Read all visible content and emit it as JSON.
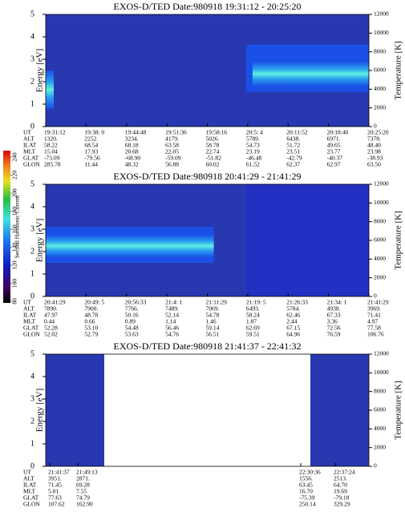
{
  "chart_data": [
    {
      "type": "heatmap",
      "title": "EXOS-D/TED  Date:980918  19:31:12 - 20:25:20",
      "ylabel": "Energy [eV]",
      "y2label": "Temperature [K]",
      "ylim": [
        0,
        5
      ],
      "yticks": [
        0,
        1,
        2,
        3,
        4,
        5
      ],
      "y2lim": [
        0,
        12000
      ],
      "y2ticks": [
        0,
        2000,
        4000,
        6000,
        8000,
        10000,
        12000
      ],
      "ephemeris": {
        "labels": [
          "UT",
          "ALT",
          "ILAT",
          "MLT",
          "GLAT",
          "GLON"
        ],
        "rows": [
          [
            "19:31:12",
            "19:38: 0",
            "19:44:48",
            "19:51:36",
            "19:58:16",
            "20:5: 4",
            "20:11:52",
            "20:18:40",
            "20:25:20"
          ],
          [
            "1320.",
            "2252.",
            "3234.",
            "4179.",
            "5026.",
            "5789.",
            "6438.",
            "6971.",
            "7378."
          ],
          [
            "58.22",
            "68.54",
            "68.18",
            "63.58",
            "58.78",
            "54.73",
            "51.72",
            "49.65",
            "48.40"
          ],
          [
            "15.04",
            "17.93",
            "20.68",
            "22.05",
            "22.74",
            "23.19",
            "23.51",
            "23.77",
            "23.98"
          ],
          [
            "-73.09",
            "-79.56",
            "-68.90",
            "-59.09",
            "-51.82",
            "-46.48",
            "-42.79",
            "-40.37",
            "-38.93"
          ],
          [
            "285.78",
            "11.44",
            "48.32",
            "56.88",
            "60.02",
            "61.52",
            "62.37",
            "62.97",
            "63.50"
          ]
        ]
      }
    },
    {
      "type": "heatmap",
      "title": "EXOS-D/TED  Date:980918  20:41:29 - 21:41:29",
      "ylabel": "Energy [eV]",
      "y2label": "Temperature [K]",
      "ylim": [
        0,
        5
      ],
      "yticks": [
        0,
        1,
        2,
        3,
        4,
        5
      ],
      "y2lim": [
        0,
        12000
      ],
      "y2ticks": [
        0,
        2000,
        4000,
        6000,
        8000,
        10000,
        12000
      ],
      "ephemeris": {
        "labels": [
          "UT",
          "ALT",
          "ILAT",
          "MLT",
          "GLAT",
          "GLON"
        ],
        "rows": [
          [
            "20:41:29",
            "20:49: 5",
            "20:56:33",
            "21:4: 1",
            "21:11:29",
            "21:19: 5",
            "21:26:33",
            "21:34: 1",
            "21:41:29"
          ],
          [
            "7890.",
            "7900.",
            "7766.",
            "7489.",
            "7069.",
            "6493.",
            "5784.",
            "4938.",
            "3969."
          ],
          [
            "47.97",
            "48.78",
            "50.16",
            "52.14",
            "54.78",
            "58.24",
            "62.46",
            "67.33",
            "71.41"
          ],
          [
            "0.44",
            "0.66",
            "0.89",
            "1.14",
            "1.46",
            "1.87",
            "2.44",
            "3.36",
            "4.97"
          ],
          [
            "52.28",
            "53.10",
            "54.48",
            "56.46",
            "59.14",
            "62.69",
            "67.15",
            "72.56",
            "77.58"
          ],
          [
            "52.02",
            "52.79",
            "53.63",
            "54.76",
            "56.51",
            "59.51",
            "64.96",
            "76.59",
            "106.76"
          ]
        ]
      }
    },
    {
      "type": "heatmap",
      "title": "EXOS-D/TED  Date:980918  21:41:37 - 22:41:32",
      "ylabel": "Energy [eV]",
      "y2label": "Temperature [K]",
      "ylim": [
        0,
        5
      ],
      "yticks": [
        0,
        1,
        2,
        3,
        4,
        5
      ],
      "y2lim": [
        0,
        12000
      ],
      "y2ticks": [
        0,
        2000,
        4000,
        6000,
        8000,
        10000,
        12000
      ],
      "ephemeris": {
        "labels": [
          "UT",
          "ALT",
          "ILAT",
          "MLT",
          "GLAT",
          "GLON"
        ],
        "rows": [
          [
            "21:41:37",
            "21:49:13",
            "22:30:36",
            "22:37:24"
          ],
          [
            "3951.",
            "2871.",
            "1556.",
            "2513."
          ],
          [
            "71.45",
            "69.28",
            "63.45",
            "64.70"
          ],
          [
            "5.01",
            "7.55",
            "16.70",
            "19.69"
          ],
          [
            "77.63",
            "74.79",
            "-75.39",
            "-79.18"
          ],
          [
            "107.62",
            "162.90",
            "250.14",
            "329.29"
          ]
        ]
      }
    }
  ],
  "colorbar": {
    "label": "Second Harmonic Current",
    "lim": [
      80,
      240
    ],
    "ticks": [
      80,
      100,
      120,
      140,
      160,
      180,
      200,
      220,
      240
    ]
  }
}
